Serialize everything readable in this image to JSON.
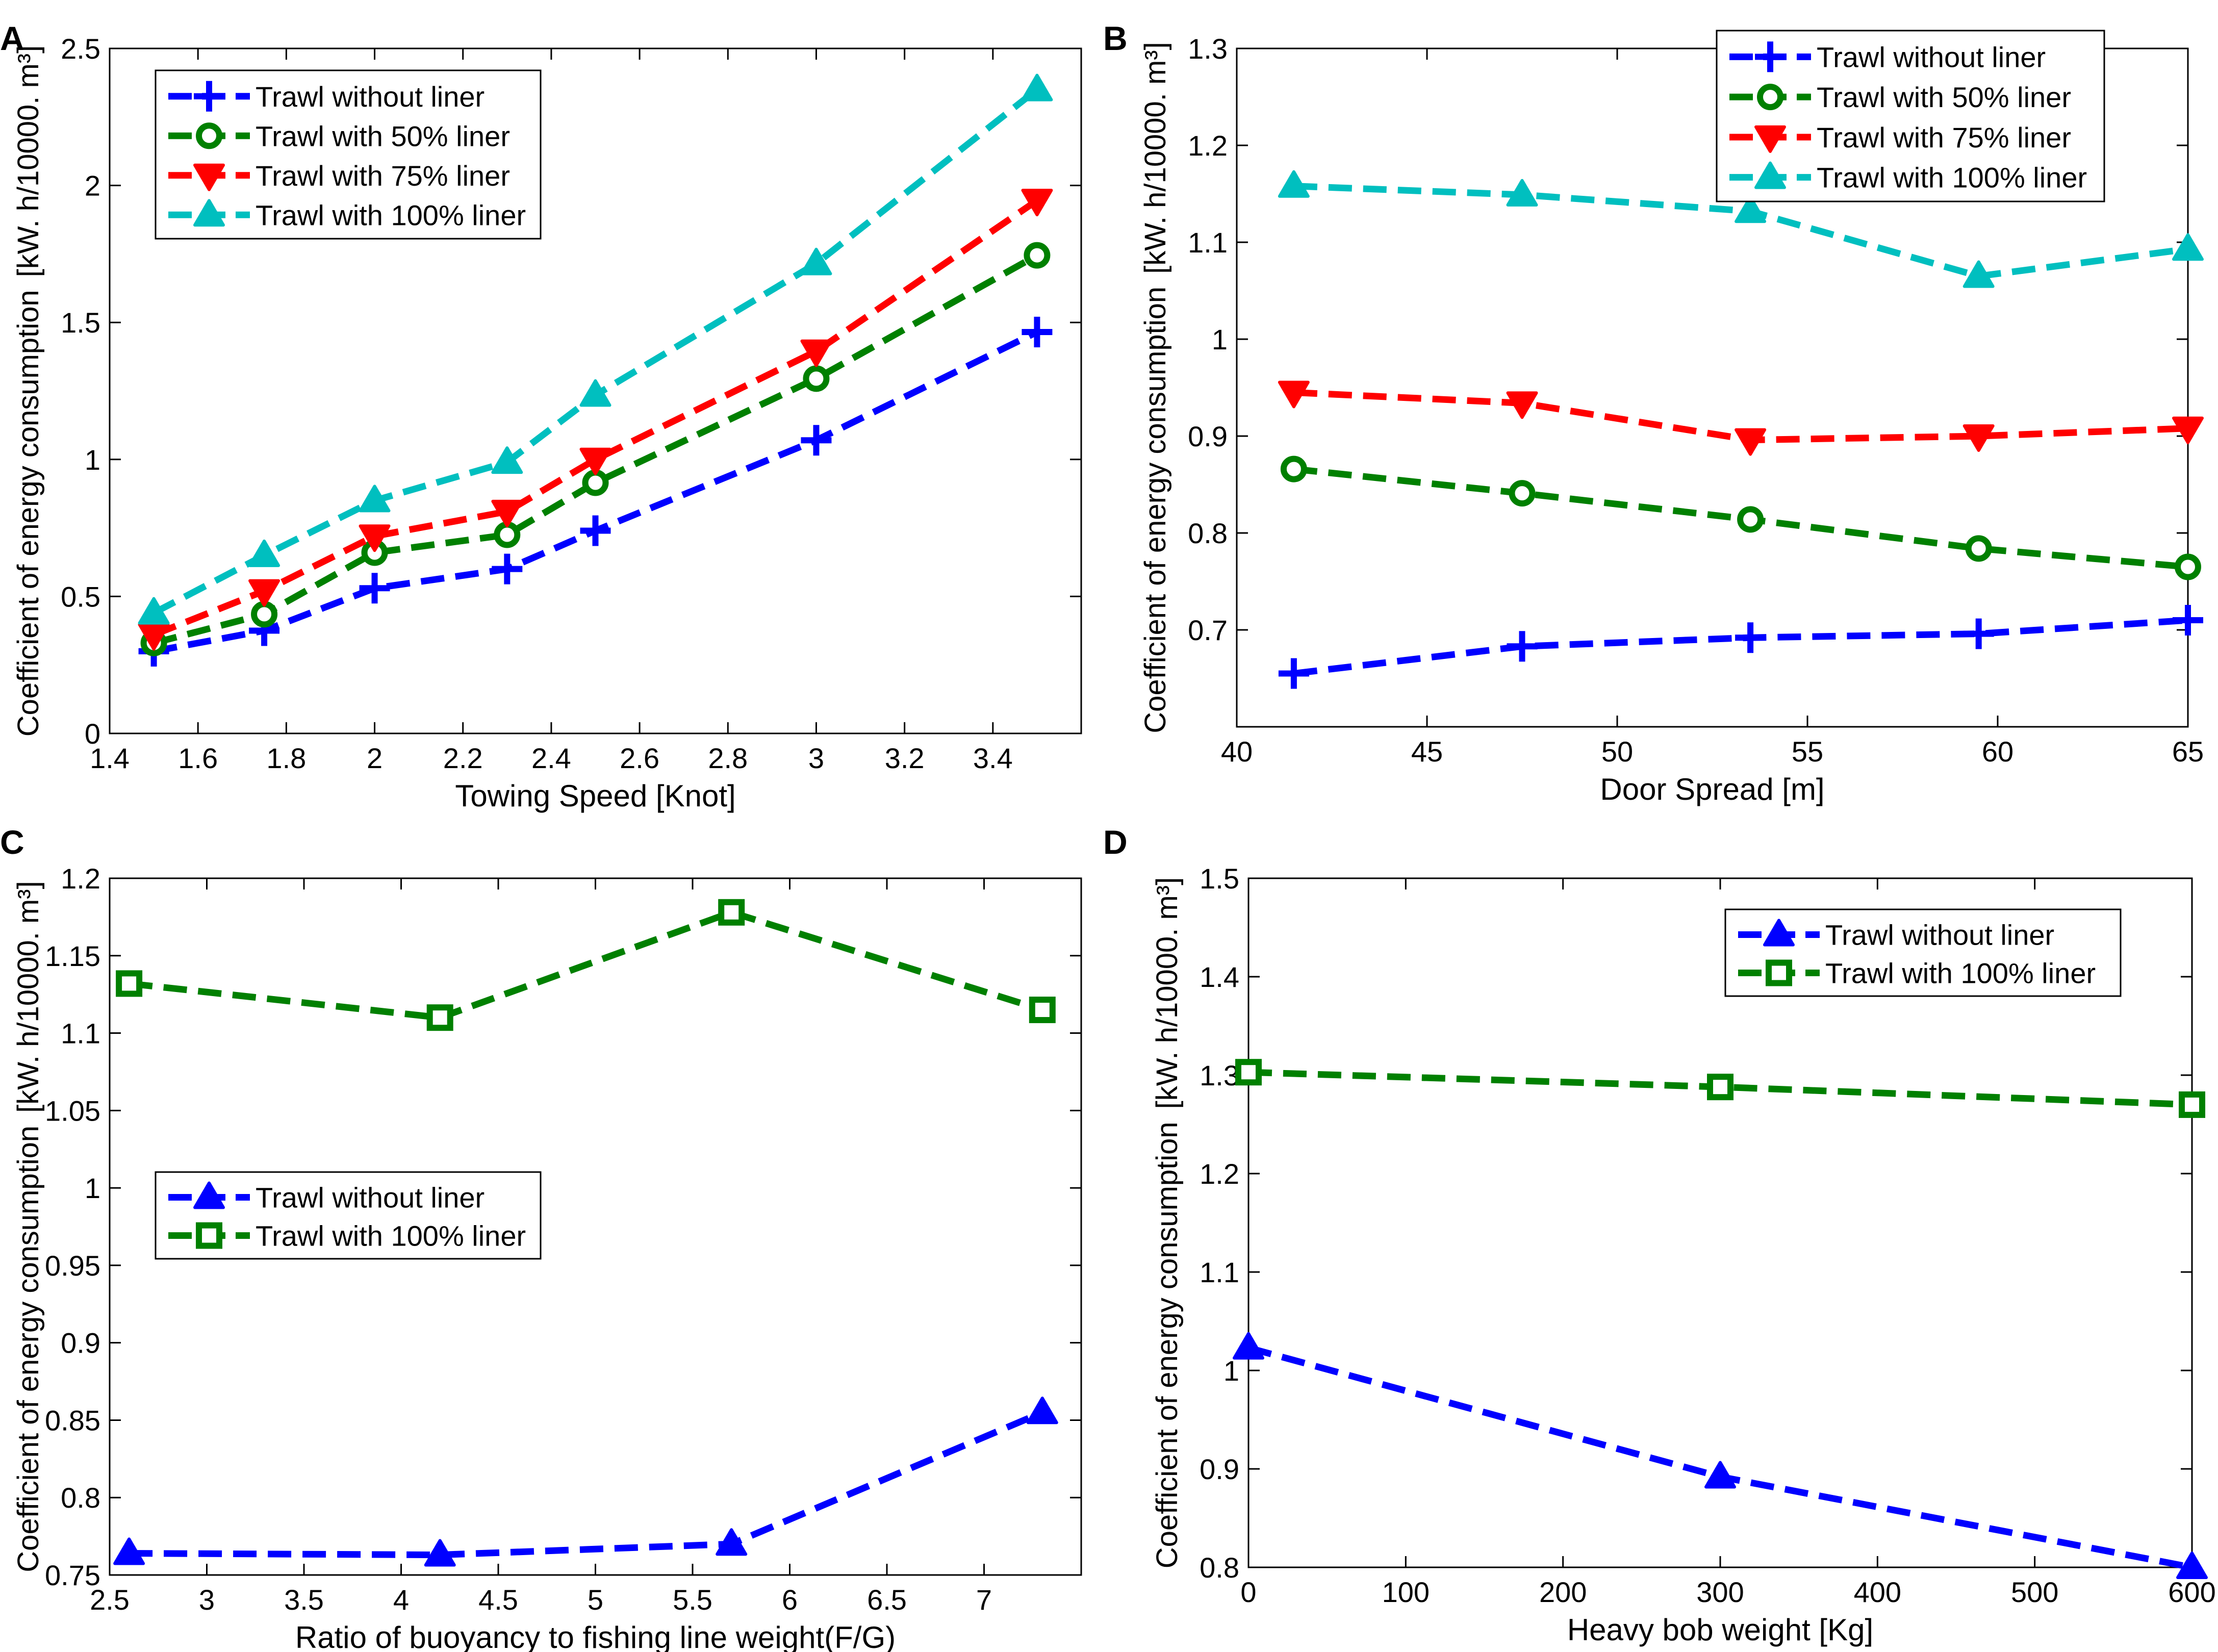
{
  "colors": {
    "blue": "#0000ff",
    "green": "#008000",
    "red": "#ff0000",
    "cyan": "#00bfbf",
    "axis": "#000000",
    "background": "#ffffff"
  },
  "chart_data": [
    {
      "panel": "A",
      "type": "line",
      "xlabel": "Towing Speed [Knot]",
      "ylabel": "Coefficient of energy consumption",
      "yunit": "[kW. h/10000. m³]",
      "xlim": [
        1.4,
        3.6
      ],
      "ylim": [
        0,
        2.5
      ],
      "xticks": [
        "1.4",
        "1.6",
        "1.8",
        "2",
        "2.2",
        "2.4",
        "2.6",
        "2.8",
        "3",
        "3.2",
        "3.4"
      ],
      "xtick_values": [
        1.4,
        1.6,
        1.8,
        2.0,
        2.2,
        2.4,
        2.6,
        2.8,
        3.0,
        3.2,
        3.4
      ],
      "yticks": [
        "0",
        "0.5",
        "1",
        "1.5",
        "2",
        "2.5"
      ],
      "ytick_values": [
        0,
        0.5,
        1,
        1.5,
        2,
        2.5
      ],
      "legend_position": "top-left",
      "x": [
        1.5,
        1.75,
        2.0,
        2.3,
        2.5,
        3.0,
        3.5
      ],
      "series": [
        {
          "name": "Trawl without liner",
          "color": "blue",
          "marker": "plus",
          "values": [
            0.3,
            0.375,
            0.53,
            0.6,
            0.74,
            1.07,
            1.465
          ]
        },
        {
          "name": "Trawl with 50% liner",
          "color": "green",
          "marker": "circle",
          "values": [
            0.33,
            0.435,
            0.66,
            0.725,
            0.915,
            1.295,
            1.745
          ]
        },
        {
          "name": "Trawl with 75% liner",
          "color": "red",
          "marker": "triangle-down",
          "values": [
            0.36,
            0.52,
            0.72,
            0.81,
            1.0,
            1.395,
            1.945
          ]
        },
        {
          "name": "Trawl with 100% liner",
          "color": "cyan",
          "marker": "triangle-up",
          "values": [
            0.44,
            0.65,
            0.85,
            0.99,
            1.235,
            1.715,
            2.35
          ]
        }
      ]
    },
    {
      "panel": "B",
      "type": "line",
      "xlabel": "Door Spread [m]",
      "ylabel": "Coefficient of energy consumption",
      "yunit": "[kW. h/10000. m³]",
      "xlim": [
        40,
        65
      ],
      "ylim": [
        0.6,
        1.3
      ],
      "xticks": [
        "40",
        "45",
        "50",
        "55",
        "60",
        "65"
      ],
      "xtick_values": [
        40,
        45,
        50,
        55,
        60,
        65
      ],
      "yticks": [
        "0.7",
        "0.8",
        "0.9",
        "1",
        "1.1",
        "1.2",
        "1.3"
      ],
      "ytick_values": [
        0.7,
        0.8,
        0.9,
        1.0,
        1.1,
        1.2,
        1.3
      ],
      "legend_position": "top-right",
      "x": [
        41.5,
        47.5,
        53.5,
        59.5,
        65
      ],
      "series": [
        {
          "name": "Trawl without liner",
          "color": "blue",
          "marker": "plus",
          "values": [
            0.655,
            0.683,
            0.692,
            0.696,
            0.71
          ]
        },
        {
          "name": "Trawl with 50% liner",
          "color": "green",
          "marker": "circle",
          "values": [
            0.866,
            0.841,
            0.814,
            0.784,
            0.765
          ]
        },
        {
          "name": "Trawl with 75% liner",
          "color": "red",
          "marker": "triangle-down",
          "values": [
            0.945,
            0.934,
            0.896,
            0.9,
            0.908
          ]
        },
        {
          "name": "Trawl with 100% liner",
          "color": "cyan",
          "marker": "triangle-up",
          "values": [
            1.158,
            1.149,
            1.132,
            1.065,
            1.093
          ]
        }
      ]
    },
    {
      "panel": "C",
      "type": "line",
      "xlabel": "Ratio of buoyancy to fishing line weight(F/G)",
      "ylabel": "Coefficient of energy consumption",
      "yunit": "[kW. h/10000. m³]",
      "xlim": [
        2.5,
        7.5
      ],
      "ylim": [
        0.75,
        1.2
      ],
      "xticks": [
        "2.5",
        "3",
        "3.5",
        "4",
        "4.5",
        "5",
        "5.5",
        "6",
        "6.5",
        "7"
      ],
      "xtick_values": [
        2.5,
        3.0,
        3.5,
        4.0,
        4.5,
        5.0,
        5.5,
        6.0,
        6.5,
        7.0
      ],
      "yticks": [
        "0.75",
        "0.8",
        "0.85",
        "0.9",
        "0.95",
        "1",
        "1.05",
        "1.1",
        "1.15",
        "1.2"
      ],
      "ytick_values": [
        0.75,
        0.8,
        0.85,
        0.9,
        0.95,
        1.0,
        1.05,
        1.1,
        1.15,
        1.2
      ],
      "legend_position": "center-left",
      "x": [
        2.6,
        4.2,
        5.7,
        7.3
      ],
      "series": [
        {
          "name": "Trawl without liner",
          "color": "blue",
          "marker": "triangle-up",
          "values": [
            0.764,
            0.763,
            0.77,
            0.855
          ]
        },
        {
          "name": "Trawl with 100% liner",
          "color": "green",
          "marker": "square",
          "values": [
            1.132,
            1.11,
            1.178,
            1.115
          ]
        }
      ]
    },
    {
      "panel": "D",
      "type": "line",
      "xlabel": "Heavy bob weight [Kg]",
      "ylabel": "Coefficient of energy consumption",
      "yunit": "[kW. h/10000. m³]",
      "xlim": [
        0,
        600
      ],
      "ylim": [
        0.8,
        1.5
      ],
      "xticks": [
        "0",
        "100",
        "200",
        "300",
        "400",
        "500",
        "600"
      ],
      "xtick_values": [
        0,
        100,
        200,
        300,
        400,
        500,
        600
      ],
      "yticks": [
        "0.8",
        "0.9",
        "1",
        "1.1",
        "1.2",
        "1.3",
        "1.4",
        "1.5"
      ],
      "ytick_values": [
        0.8,
        0.9,
        1.0,
        1.1,
        1.2,
        1.3,
        1.4,
        1.5
      ],
      "legend_position": "top-right",
      "x": [
        0,
        300,
        600
      ],
      "series": [
        {
          "name": "Trawl without liner",
          "color": "blue",
          "marker": "triangle-up",
          "values": [
            1.023,
            0.892,
            0.8
          ]
        },
        {
          "name": "Trawl with 100% liner",
          "color": "green",
          "marker": "square",
          "values": [
            1.303,
            1.288,
            1.27
          ]
        }
      ]
    }
  ]
}
